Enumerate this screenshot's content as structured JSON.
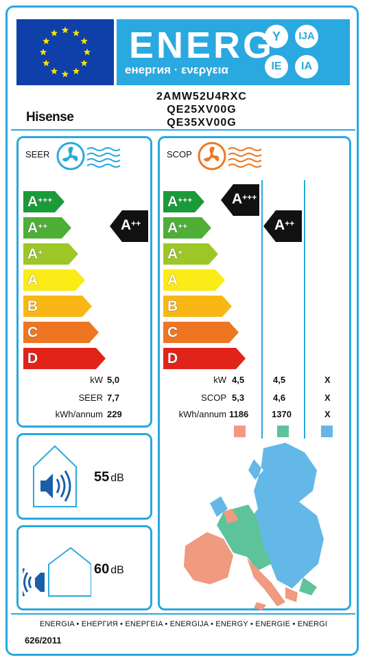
{
  "header": {
    "energ_word": "ENERG",
    "energ_subtitle": "енергия · ενεργεια",
    "lang_codes": [
      "Y",
      "IJA",
      "IE",
      "IA"
    ]
  },
  "supplier": {
    "brand": "Hisense",
    "models": [
      "2AMW52U4RXC",
      "QE25XV00G",
      "QE35XV00G"
    ]
  },
  "seer_panel": {
    "label": "SEER",
    "classes": [
      "A+++",
      "A++",
      "A+",
      "A",
      "B",
      "C",
      "D"
    ],
    "rating": "A++",
    "rows": [
      {
        "label": "kW",
        "value": "5,0"
      },
      {
        "label": "SEER",
        "value": "7,7"
      },
      {
        "label": "kWh/annum",
        "value": "229"
      }
    ]
  },
  "scop_panel": {
    "label": "SCOP",
    "classes": [
      "A+++",
      "A++",
      "A+",
      "A",
      "B",
      "C",
      "D"
    ],
    "ratings": [
      "A+++",
      "A++"
    ],
    "rows": [
      {
        "label": "kW",
        "values": [
          "4,5",
          "4,5",
          "X"
        ]
      },
      {
        "label": "SCOP",
        "values": [
          "5,3",
          "4,6",
          "X"
        ]
      },
      {
        "label": "kWh/annum",
        "values": [
          "1186",
          "1370",
          "X"
        ]
      }
    ],
    "zone_colors": [
      "#f09a80",
      "#5ec39a",
      "#63b8e8"
    ]
  },
  "noise": {
    "indoor_value": "55",
    "outdoor_value": "60",
    "unit": "dB"
  },
  "colors": {
    "class_colors": [
      "#1a9b3a",
      "#4daf35",
      "#9cc726",
      "#fbeb16",
      "#f8b715",
      "#ee7623",
      "#e2231a"
    ],
    "accent": "#27a8df",
    "eu_blue": "#0f3fa8"
  },
  "footer": {
    "languages": "ENERGIA • ЕНЕРГИЯ • ΕΝΕΡΓΕΙΑ • ENERGIJA • ENERGY • ENERGIE • ENERGI",
    "regulation": "626/2011"
  }
}
